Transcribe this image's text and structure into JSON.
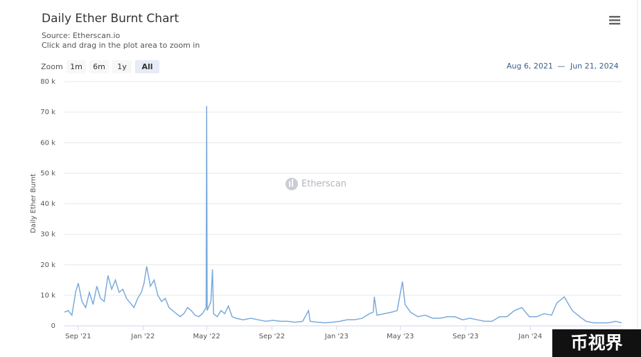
{
  "chart_data": {
    "type": "line",
    "title": "Daily Ether Burnt Chart",
    "source": "Source: Etherscan.io",
    "note": "Click and drag in the plot area to zoom in",
    "zoom": {
      "label": "Zoom",
      "buttons": [
        "1m",
        "6m",
        "1y",
        "All"
      ]
    },
    "range": {
      "from": "Aug 6, 2021",
      "separator": "—",
      "to": "Jun 21, 2024"
    },
    "ylabel": "Daily Ether Burnt",
    "watermark": "Etherscan",
    "corner_badge": "币视界",
    "xlim": [
      "2021-08-06",
      "2024-06-21"
    ],
    "xticks": [
      {
        "value": "2021-09-01",
        "label": "Sep '21"
      },
      {
        "value": "2022-01-01",
        "label": "Jan '22"
      },
      {
        "value": "2022-05-01",
        "label": "May '22"
      },
      {
        "value": "2022-09-01",
        "label": "Sep '22"
      },
      {
        "value": "2023-01-01",
        "label": "Jan '23"
      },
      {
        "value": "2023-05-01",
        "label": "May '23"
      },
      {
        "value": "2023-09-01",
        "label": "Sep '23"
      },
      {
        "value": "2024-01-01",
        "label": "Jan '24"
      }
    ],
    "ylim": [
      0,
      80000
    ],
    "yticks": [
      {
        "value": 0,
        "label": "0"
      },
      {
        "value": 10000,
        "label": "10 k"
      },
      {
        "value": 20000,
        "label": "20 k"
      },
      {
        "value": 30000,
        "label": "30 k"
      },
      {
        "value": 40000,
        "label": "40 k"
      },
      {
        "value": 50000,
        "label": "50 k"
      },
      {
        "value": 60000,
        "label": "60 k"
      },
      {
        "value": 70000,
        "label": "70 k"
      },
      {
        "value": 80000,
        "label": "80 k"
      }
    ],
    "grid": true,
    "x": [
      "2021-08-06",
      "2021-08-13",
      "2021-08-20",
      "2021-08-27",
      "2021-09-01",
      "2021-09-08",
      "2021-09-15",
      "2021-09-22",
      "2021-09-29",
      "2021-10-06",
      "2021-10-13",
      "2021-10-20",
      "2021-10-27",
      "2021-11-03",
      "2021-11-10",
      "2021-11-17",
      "2021-11-24",
      "2021-12-01",
      "2021-12-08",
      "2021-12-15",
      "2021-12-22",
      "2021-12-29",
      "2022-01-03",
      "2022-01-08",
      "2022-01-15",
      "2022-01-22",
      "2022-01-29",
      "2022-02-05",
      "2022-02-12",
      "2022-02-19",
      "2022-02-26",
      "2022-03-05",
      "2022-03-12",
      "2022-03-19",
      "2022-03-26",
      "2022-04-02",
      "2022-04-09",
      "2022-04-16",
      "2022-04-23",
      "2022-04-30",
      "2022-05-01",
      "2022-05-02",
      "2022-05-09",
      "2022-05-12",
      "2022-05-14",
      "2022-05-21",
      "2022-05-28",
      "2022-06-04",
      "2022-06-11",
      "2022-06-18",
      "2022-06-25",
      "2022-07-09",
      "2022-07-23",
      "2022-08-06",
      "2022-08-20",
      "2022-09-03",
      "2022-09-17",
      "2022-10-01",
      "2022-10-15",
      "2022-10-29",
      "2022-11-09",
      "2022-11-12",
      "2022-11-26",
      "2022-12-10",
      "2022-12-24",
      "2023-01-07",
      "2023-01-21",
      "2023-02-04",
      "2023-02-18",
      "2023-03-04",
      "2023-03-11",
      "2023-03-13",
      "2023-03-18",
      "2023-04-01",
      "2023-04-15",
      "2023-04-25",
      "2023-05-05",
      "2023-05-10",
      "2023-05-20",
      "2023-06-03",
      "2023-06-17",
      "2023-07-01",
      "2023-07-15",
      "2023-07-29",
      "2023-08-12",
      "2023-08-26",
      "2023-09-09",
      "2023-09-23",
      "2023-10-07",
      "2023-10-21",
      "2023-11-04",
      "2023-11-18",
      "2023-12-02",
      "2023-12-16",
      "2023-12-30",
      "2024-01-13",
      "2024-01-27",
      "2024-02-10",
      "2024-02-20",
      "2024-03-05",
      "2024-03-20",
      "2024-04-03",
      "2024-04-15",
      "2024-04-29",
      "2024-05-13",
      "2024-05-27",
      "2024-06-10",
      "2024-06-21"
    ],
    "series": [
      {
        "name": "Daily Ether Burnt",
        "color": "#7aaadc",
        "values": [
          4500,
          5000,
          3500,
          11000,
          14000,
          8000,
          6000,
          11000,
          7000,
          13000,
          9000,
          8000,
          16500,
          12000,
          15000,
          11000,
          12000,
          9000,
          7500,
          6000,
          9000,
          11000,
          14000,
          19500,
          13000,
          15000,
          10000,
          8000,
          9000,
          6000,
          5000,
          4000,
          3000,
          4000,
          6000,
          5000,
          3500,
          3000,
          4000,
          6000,
          72000,
          5000,
          8000,
          18500,
          4000,
          3000,
          5000,
          4000,
          6500,
          3000,
          2500,
          2000,
          2500,
          2000,
          1500,
          1800,
          1500,
          1500,
          1200,
          1500,
          5000,
          1500,
          1200,
          1000,
          1200,
          1500,
          2000,
          2000,
          2500,
          4000,
          4500,
          9500,
          3500,
          4000,
          4500,
          5000,
          14500,
          7000,
          4500,
          3000,
          3500,
          2500,
          2500,
          3000,
          3000,
          2000,
          2500,
          2000,
          1500,
          1500,
          3000,
          3000,
          5000,
          6000,
          3000,
          3000,
          4000,
          3500,
          7500,
          9500,
          5000,
          3000,
          1500,
          1000,
          1000,
          1000,
          1500,
          1000
        ]
      }
    ]
  }
}
